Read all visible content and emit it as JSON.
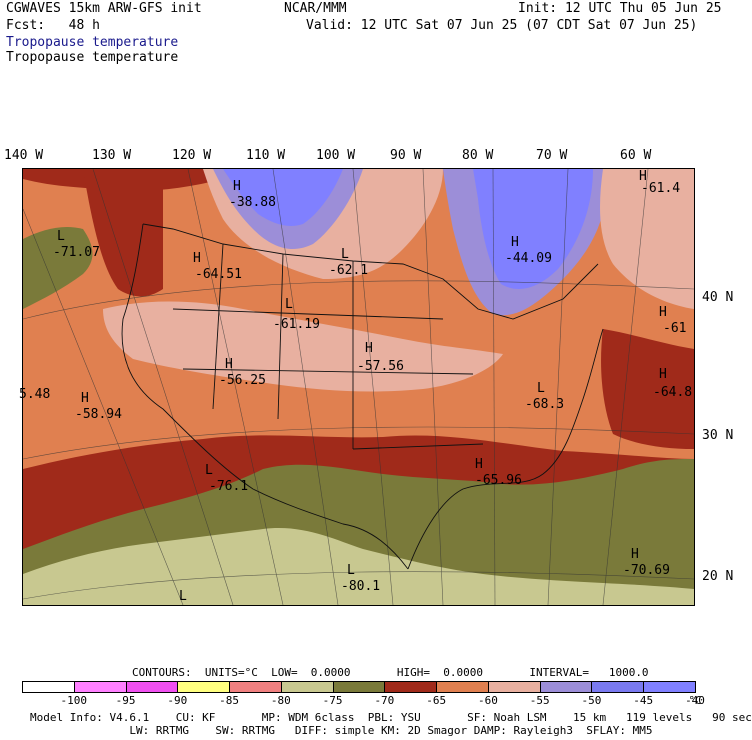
{
  "header": {
    "model": "CGWAVES 15km ARW-GFS init",
    "forecast": "Fcst:   48 h",
    "org": "NCAR/MMM",
    "init": "Init: 12 UTC Thu 05 Jun 25",
    "valid": "Valid: 12 UTC Sat 07 Jun 25 (07 CDT Sat 07 Jun 25)",
    "field1": "Tropopause temperature",
    "field2": "Tropopause temperature"
  },
  "lon_labels": [
    "140 W",
    "130 W",
    "120 W",
    "110 W",
    "100 W",
    "90 W",
    "80 W",
    "70 W",
    "60 W"
  ],
  "lat_labels": [
    "40 N",
    "30 N",
    "20 N"
  ],
  "map_labels": [
    {
      "hl": "H",
      "value": "-38.88"
    },
    {
      "hl": "H",
      "value": "-44.09"
    },
    {
      "hl": "H",
      "value": "-61.4"
    },
    {
      "hl": "L",
      "value": "-71.07"
    },
    {
      "hl": "H",
      "value": "-64.51"
    },
    {
      "hl": "L",
      "value": "-62.1"
    },
    {
      "hl": "L",
      "value": "-61.19"
    },
    {
      "hl": "H",
      "value": "-57.56"
    },
    {
      "hl": "H",
      "value": "-56.25"
    },
    {
      "hl": "H",
      "value": "-58.94"
    },
    {
      "hl": "",
      "value": "5.48"
    },
    {
      "hl": "L",
      "value": "-68.3"
    },
    {
      "hl": "H",
      "value": "-61"
    },
    {
      "hl": "H",
      "value": "-64.8"
    },
    {
      "hl": "L",
      "value": "-76.1"
    },
    {
      "hl": "H",
      "value": "-65.96"
    },
    {
      "hl": "L",
      "value": "-80.1"
    },
    {
      "hl": "H",
      "value": "-70.69"
    },
    {
      "hl": "L",
      "value": ""
    }
  ],
  "contours": {
    "text": "CONTOURS:  UNITS=°C  LOW=  0.0000       HIGH=  0.0000       INTERVAL=   1000.0"
  },
  "colorbar": {
    "colors": [
      "#ffffff",
      "#ff80ff",
      "#f050f0",
      "#ffff80",
      "#f08080",
      "#c8c890",
      "#7a7a3a",
      "#a02a1a",
      "#e08050",
      "#e8b0a0",
      "#9c8ed8",
      "#7a7af0",
      "#8080ff"
    ],
    "labels": [
      "-100",
      "-95",
      "-90",
      "-85",
      "-80",
      "-75",
      "-70",
      "-65",
      "-60",
      "-55",
      "-50",
      "-45",
      "-40"
    ],
    "unit": "°C"
  },
  "footer": {
    "line1": "Model Info: V4.6.1    CU: KF       MP: WDM 6class  PBL: YSU       SF: Noah LSM    15 km   119 levels   90 sec",
    "line2": "               LW: RRTMG    SW: RRTMG   DIFF: simple KM: 2D Smagor DAMP: Rayleigh3  SFLAY: MM5"
  }
}
